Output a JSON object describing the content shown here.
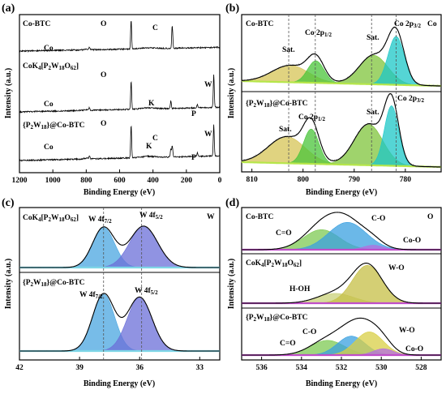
{
  "chart_data": [
    {
      "panel": "(a)",
      "type": "line",
      "xlabel": "Binding Energy (eV)",
      "ylabel": "Intensity (a.u.)",
      "xlim": [
        1200,
        0
      ],
      "xticks": [
        1200,
        1000,
        800,
        600,
        400,
        200,
        0
      ],
      "series": [
        {
          "name": "Co-BTC",
          "peaks": [
            {
              "x": 781,
              "h": 0.08,
              "label": "Co"
            },
            {
              "x": 531,
              "h": 0.95,
              "label": "O"
            },
            {
              "x": 284.6,
              "h": 0.75,
              "label": "C"
            }
          ]
        },
        {
          "name": "CoK₄[P₂W₁₈O₆₂]",
          "peaks": [
            {
              "x": 781,
              "h": 0.06,
              "label": "Co"
            },
            {
              "x": 531,
              "h": 0.75,
              "label": "O"
            },
            {
              "x": 293,
              "h": 0.2,
              "label": "K"
            },
            {
              "x": 134,
              "h": 0.1,
              "label": "P"
            },
            {
              "x": 36,
              "h": 0.85,
              "label": "W"
            }
          ]
        },
        {
          "name": "{P₂W₁₈}@Co-BTC",
          "peaks": [
            {
              "x": 781,
              "h": 0.08,
              "label": "Co"
            },
            {
              "x": 531,
              "h": 0.85,
              "label": "O"
            },
            {
              "x": 293,
              "h": 0.2,
              "label": "K"
            },
            {
              "x": 284.6,
              "h": 0.3,
              "label": "C"
            },
            {
              "x": 134,
              "h": 0.1,
              "label": "P"
            },
            {
              "x": 36,
              "h": 0.8,
              "label": "W"
            }
          ]
        }
      ]
    },
    {
      "panel": "(b)",
      "type": "line",
      "element": "Co",
      "xlabel": "Binding Energy (eV)",
      "ylabel": "Intensity (a.u.)",
      "xlim": [
        812,
        773
      ],
      "xticks": [
        810,
        800,
        790,
        780
      ],
      "reference_lines": [
        802.8,
        797.6,
        786.6,
        781.8
      ],
      "series": [
        {
          "name": "Co-BTC",
          "peaks": [
            {
              "label": "Sat.",
              "x": 802.5,
              "h": 0.32,
              "w": 3.6,
              "color": "#d6c455"
            },
            {
              "label": "Co 2p1/2",
              "x": 797.5,
              "h": 0.42,
              "w": 1.6,
              "color": "#49c43a"
            },
            {
              "label": "Sat.",
              "x": 786.2,
              "h": 0.55,
              "w": 2.8,
              "color": "#7fc43b"
            },
            {
              "label": "Co 2p3/2",
              "x": 781.8,
              "h": 0.92,
              "w": 1.6,
              "color": "#1cc7c7"
            }
          ]
        },
        {
          "name": "{P₂W₁₈}@Co-BTC",
          "peaks": [
            {
              "label": "Sat.",
              "x": 803.2,
              "h": 0.42,
              "w": 3.6,
              "color": "#d6c455"
            },
            {
              "label": "Co 2p1/2",
              "x": 798.4,
              "h": 0.55,
              "w": 1.5,
              "color": "#49c43a"
            },
            {
              "label": "Sat.",
              "x": 787.2,
              "h": 0.65,
              "w": 2.8,
              "color": "#7fc43b"
            },
            {
              "label": "Co 2p3/2",
              "x": 782.7,
              "h": 0.95,
              "w": 1.4,
              "color": "#1cc7c7"
            }
          ]
        }
      ]
    },
    {
      "panel": "(c)",
      "type": "line",
      "element": "W",
      "xlabel": "Binding Energy (eV)",
      "ylabel": "Intensity (a.u.)",
      "xlim": [
        42,
        32
      ],
      "xticks": [
        42,
        39,
        36,
        33
      ],
      "reference_lines": [
        37.8,
        35.9
      ],
      "series": [
        {
          "name": "CoK₄[P₂W₁₈O₆₂]",
          "peaks": [
            {
              "label": "W 4f7/2",
              "x": 37.8,
              "h": 0.85,
              "w": 0.55,
              "color": "#4aa6e0"
            },
            {
              "label": "W 4f5/2",
              "x": 35.8,
              "h": 0.88,
              "w": 0.7,
              "color": "#6b6fd8"
            }
          ]
        },
        {
          "name": "{P₂W₁₈}@Co-BTC",
          "peaks": [
            {
              "label": "W 4f7/2",
              "x": 37.8,
              "h": 0.9,
              "w": 0.55,
              "color": "#4aa6e0"
            },
            {
              "label": "W 4f5/2",
              "x": 36.0,
              "h": 0.85,
              "w": 0.62,
              "color": "#6b6fd8"
            }
          ]
        }
      ]
    },
    {
      "panel": "(d)",
      "type": "line",
      "element": "O",
      "xlabel": "Binding Energy (eV)",
      "ylabel": "Intensity (a.u.)",
      "xlim": [
        537,
        527
      ],
      "xticks": [
        536,
        534,
        532,
        530,
        528
      ],
      "series": [
        {
          "name": "Co-BTC",
          "peaks": [
            {
              "label": "C=O",
              "x": 533.0,
              "h": 0.55,
              "w": 0.9,
              "color": "#7ec953"
            },
            {
              "label": "C-O",
              "x": 531.7,
              "h": 0.75,
              "w": 0.95,
              "color": "#3aa0e0"
            },
            {
              "label": "Co-O",
              "x": 530.4,
              "h": 0.12,
              "w": 0.5,
              "color": "#b36de0"
            }
          ]
        },
        {
          "name": "CoK₄[P₂W₁₈O₆₂]",
          "peaks": [
            {
              "label": "H-OH",
              "x": 532.3,
              "h": 0.22,
              "w": 0.9,
              "color": "#c9d27a"
            },
            {
              "label": "W-O",
              "x": 530.7,
              "h": 0.85,
              "w": 0.75,
              "color": "#c6bf45"
            }
          ]
        },
        {
          "name": "{P₂W₁₈}@Co-BTC",
          "peaks": [
            {
              "label": "C=O",
              "x": 532.7,
              "h": 0.35,
              "w": 0.85,
              "color": "#7ec953"
            },
            {
              "label": "C-O",
              "x": 531.5,
              "h": 0.45,
              "w": 0.7,
              "color": "#3aa0e0"
            },
            {
              "label": "W-O",
              "x": 530.6,
              "h": 0.55,
              "w": 0.7,
              "color": "#d8cf45"
            },
            {
              "label": "Co-O",
              "x": 529.9,
              "h": 0.15,
              "w": 0.5,
              "color": "#b36de0"
            }
          ]
        }
      ]
    }
  ],
  "labels": {
    "a_panel": "(a)",
    "b_panel": "(b)",
    "c_panel": "(c)",
    "d_panel": "(d)",
    "a_co_btc": "Co-BTC",
    "a_co_btc_O": "O",
    "a_co_btc_C": "C",
    "a_co_btc_Co": "Co",
    "a_pom_O": "O",
    "a_pom_Co": "Co",
    "a_pom_K": "K",
    "a_pom_W": "W",
    "a_pom_P": "P",
    "a_comp_O": "O",
    "a_comp_Co": "Co",
    "a_comp_K": "K",
    "a_comp_C": "C",
    "a_comp_W": "W",
    "a_comp_P": "P",
    "b_element": "Co",
    "b_co_btc": "Co-BTC",
    "c_element": "W",
    "d_element": "O",
    "d_co_btc": "Co-BTC"
  },
  "colors": {
    "raw": "#9a9a9a",
    "envelope": "#000000",
    "baseline_b": "#a6e23c",
    "baseline_c": "#5fd0e0",
    "baseline_d": "#c04ec9"
  }
}
